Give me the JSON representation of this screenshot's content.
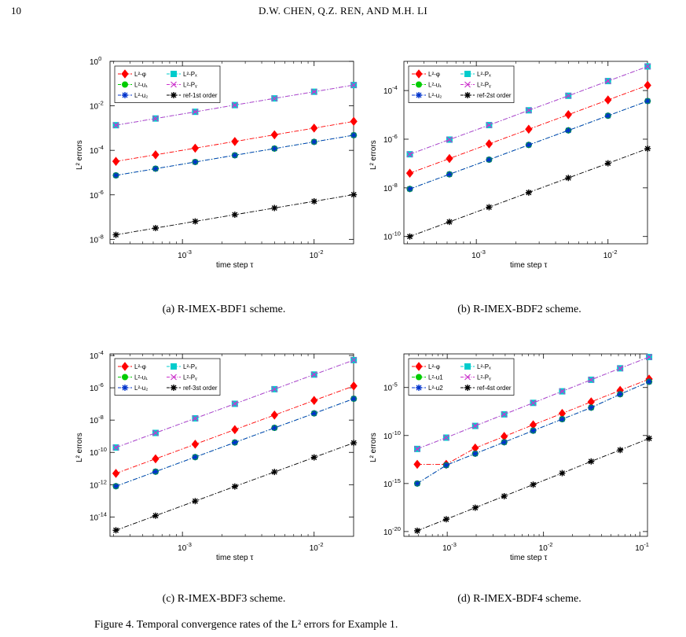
{
  "header": {
    "page_number": "10",
    "running_head": "D.W. CHEN, Q.Z. REN, AND M.H. LI"
  },
  "axis_labels": {
    "x": "time step τ",
    "y": "L² errors"
  },
  "colors": {
    "phi": "#ff0000",
    "u1": "#00cc00",
    "u2": "#0033cc",
    "Px": "#00cccc",
    "Py": "#cc33cc",
    "ref": "#000000"
  },
  "chart_data": [
    {
      "type": "line",
      "caption": "(a) R-IMEX-BDF1 scheme.",
      "xlabel": "time step τ",
      "ylabel": "L² errors",
      "x_log_range": [
        -3.55,
        -1.7
      ],
      "y_log_range": [
        -8.2,
        0
      ],
      "x_ticks": [
        {
          "p": -3,
          "label": "10"
        },
        {
          "p": -2,
          "label": "10"
        }
      ],
      "y_ticks": [
        {
          "p": -8
        },
        {
          "p": -6
        },
        {
          "p": -4
        },
        {
          "p": -2
        },
        {
          "p": 0
        }
      ],
      "x": [
        0.0003125,
        0.000625,
        0.00125,
        0.0025,
        0.005,
        0.01,
        0.02
      ],
      "series": [
        {
          "name": "L²-φ",
          "key": "phi",
          "values": [
            3.2e-05,
            6.3e-05,
            0.000125,
            0.00025,
            0.0005,
            0.001,
            0.002
          ]
        },
        {
          "name": "L²-u₁",
          "key": "u1",
          "values": [
            7.5e-06,
            1.5e-05,
            3e-05,
            6e-05,
            0.00012,
            0.00024,
            0.00048
          ]
        },
        {
          "name": "L²-u₂",
          "key": "u2",
          "values": [
            7.5e-06,
            1.5e-05,
            3e-05,
            6e-05,
            0.00012,
            0.00024,
            0.00048
          ]
        },
        {
          "name": "L²-Pₓ",
          "key": "Px",
          "values": [
            0.00135,
            0.0027,
            0.0054,
            0.0108,
            0.0216,
            0.043,
            0.086
          ]
        },
        {
          "name": "L²-Pᵧ",
          "key": "Py",
          "values": [
            0.00135,
            0.0027,
            0.0054,
            0.0108,
            0.0216,
            0.043,
            0.086
          ]
        },
        {
          "name": "ref-1st order",
          "key": "ref",
          "values": [
            1.6e-08,
            3.2e-08,
            6.4e-08,
            1.28e-07,
            2.56e-07,
            5.1e-07,
            1.02e-06
          ]
        }
      ]
    },
    {
      "type": "line",
      "caption": "(b) R-IMEX-BDF2 scheme.",
      "xlabel": "time step τ",
      "ylabel": "L² errors",
      "x_log_range": [
        -3.55,
        -1.7
      ],
      "y_log_range": [
        -10.3,
        -2.8
      ],
      "x_ticks": [
        {
          "p": -3,
          "label": "10"
        },
        {
          "p": -2,
          "label": "10"
        }
      ],
      "y_ticks": [
        {
          "p": -10
        },
        {
          "p": -8
        },
        {
          "p": -6
        },
        {
          "p": -4
        }
      ],
      "x": [
        0.0003125,
        0.000625,
        0.00125,
        0.0025,
        0.005,
        0.01,
        0.02
      ],
      "series": [
        {
          "name": "L²-φ",
          "key": "phi",
          "values": [
            4e-08,
            1.6e-07,
            6.4e-07,
            2.56e-06,
            1.02e-05,
            4.1e-05,
            0.000164
          ]
        },
        {
          "name": "L²-u₁",
          "key": "u1",
          "values": [
            9e-09,
            3.6e-08,
            1.44e-07,
            5.8e-07,
            2.3e-06,
            9.2e-06,
            3.7e-05
          ]
        },
        {
          "name": "L²-u₂",
          "key": "u2",
          "values": [
            9e-09,
            3.6e-08,
            1.44e-07,
            5.8e-07,
            2.3e-06,
            9.2e-06,
            3.7e-05
          ]
        },
        {
          "name": "L²-Pₓ",
          "key": "Px",
          "values": [
            2.4e-07,
            9.6e-07,
            3.8e-06,
            1.54e-05,
            6.1e-05,
            0.000245,
            0.00098
          ]
        },
        {
          "name": "L²-Pᵧ",
          "key": "Py",
          "values": [
            2.4e-07,
            9.6e-07,
            3.8e-06,
            1.54e-05,
            6.1e-05,
            0.000245,
            0.00098
          ]
        },
        {
          "name": "ref-2st order",
          "key": "ref",
          "values": [
            1e-10,
            4e-10,
            1.6e-09,
            6.4e-09,
            2.56e-08,
            1.02e-07,
            4.1e-07
          ]
        }
      ]
    },
    {
      "type": "line",
      "caption": "(c) R-IMEX-BDF3 scheme.",
      "xlabel": "time step τ",
      "ylabel": "L² errors",
      "x_log_range": [
        -3.55,
        -1.7
      ],
      "y_log_range": [
        -15.2,
        -3.9
      ],
      "x_ticks": [
        {
          "p": -3,
          "label": "10"
        },
        {
          "p": -2,
          "label": "10"
        }
      ],
      "y_ticks": [
        {
          "p": -14
        },
        {
          "p": -12
        },
        {
          "p": -10
        },
        {
          "p": -8
        },
        {
          "p": -6
        },
        {
          "p": -4
        }
      ],
      "x": [
        0.0003125,
        0.000625,
        0.00125,
        0.0025,
        0.005,
        0.01,
        0.02
      ],
      "series": [
        {
          "name": "L²-φ",
          "key": "phi",
          "values": [
            5e-12,
            4e-11,
            3.2e-10,
            2.56e-09,
            2.05e-08,
            1.64e-07,
            1.3e-06
          ]
        },
        {
          "name": "L²-u₁",
          "key": "u1",
          "values": [
            8e-13,
            6.4e-12,
            5.1e-11,
            4.1e-10,
            3.3e-09,
            2.6e-08,
            2.1e-07
          ]
        },
        {
          "name": "L²-u₂",
          "key": "u2",
          "values": [
            8e-13,
            6.4e-12,
            5.1e-11,
            4.1e-10,
            3.3e-09,
            2.6e-08,
            2.1e-07
          ]
        },
        {
          "name": "L²-Pₓ",
          "key": "Px",
          "values": [
            2e-10,
            1.6e-09,
            1.28e-08,
            1.02e-07,
            8.2e-07,
            6.6e-06,
            5.2e-05
          ]
        },
        {
          "name": "L²-Pᵧ",
          "key": "Py",
          "values": [
            2e-10,
            1.6e-09,
            1.28e-08,
            1.02e-07,
            8.2e-07,
            6.6e-06,
            5.2e-05
          ]
        },
        {
          "name": "ref-3st order",
          "key": "ref",
          "values": [
            1.5e-15,
            1.2e-14,
            9.6e-14,
            7.7e-13,
            6.1e-12,
            4.9e-11,
            3.9e-10
          ]
        }
      ]
    },
    {
      "type": "line",
      "caption": "(d) R-IMEX-BDF4 scheme.",
      "xlabel": "time step τ",
      "ylabel": "L² errors",
      "x_log_range": [
        -3.45,
        -0.92
      ],
      "y_log_range": [
        -20.5,
        -1.5
      ],
      "x_ticks": [
        {
          "p": -3,
          "label": "10"
        },
        {
          "p": -2,
          "label": "10"
        },
        {
          "p": -1,
          "label": "10"
        }
      ],
      "y_ticks": [
        {
          "p": -20
        },
        {
          "p": -15
        },
        {
          "p": -10
        },
        {
          "p": -5
        }
      ],
      "x": [
        0.0004883,
        0.0009766,
        0.001953,
        0.003906,
        0.007813,
        0.01563,
        0.03125,
        0.0625,
        0.125
      ],
      "series": [
        {
          "name": "L²-φ",
          "key": "phi",
          "values": [
            1e-13,
            1e-13,
            5e-12,
            8e-11,
            1.3e-09,
            2e-08,
            3.2e-07,
            5e-06,
            7.5e-05
          ]
        },
        {
          "name": "L²-u1",
          "key": "u1",
          "values": [
            1e-15,
            8e-14,
            1.3e-12,
            2e-11,
            3.2e-10,
            5e-09,
            8e-08,
            2e-06,
            4e-05
          ]
        },
        {
          "name": "L²-u2",
          "key": "u2",
          "values": [
            1e-15,
            8e-14,
            1.3e-12,
            2e-11,
            3.2e-10,
            5e-09,
            8e-08,
            2e-06,
            4e-05
          ]
        },
        {
          "name": "L²-Pₓ",
          "key": "Px",
          "values": [
            4e-12,
            6e-11,
            1e-09,
            1.6e-08,
            2.5e-07,
            4e-06,
            6.4e-05,
            0.001,
            0.015
          ]
        },
        {
          "name": "L²-Pᵧ",
          "key": "Py",
          "values": [
            4e-12,
            6e-11,
            1e-09,
            1.6e-08,
            2.5e-07,
            4e-06,
            6.4e-05,
            0.001,
            0.015
          ]
        },
        {
          "name": "ref-4st order",
          "key": "ref",
          "values": [
            1.2e-20,
            1.9e-19,
            3e-18,
            4.8e-17,
            7.7e-16,
            1.2e-14,
            2e-13,
            3.1e-12,
            5e-11
          ]
        }
      ]
    }
  ],
  "bottom_text": "Figure 4. Temporal convergence rates of the L² errors for Example 1."
}
